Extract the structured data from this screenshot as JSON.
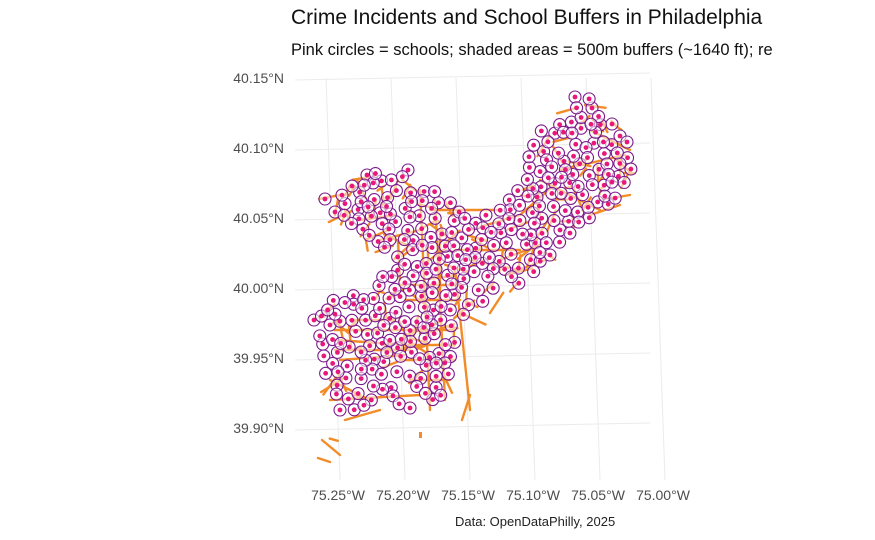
{
  "title": "Crime Incidents and School Buffers in Philadelphia",
  "subtitle": "Pink circles = schools; shaded areas = 500m buffers (~1640 ft); re",
  "caption": "Data: OpenDataPhilly, 2025",
  "colors": {
    "school_fill": "#e8177a",
    "buffer_stroke": "#7a1a8c",
    "crime": "#f28c28",
    "grid": "#ebebeb",
    "axis_text": "#4d4d4d"
  },
  "chart_data": {
    "type": "map",
    "title": "Crime Incidents and School Buffers in Philadelphia",
    "subtitle": "Pink circles = schools; shaded areas = 500m buffers (~1640 ft); re",
    "caption": "Data: OpenDataPhilly, 2025",
    "y_axis": {
      "ticks": [
        40.15,
        40.1,
        40.05,
        40.0,
        39.95,
        39.9
      ],
      "tick_labels": [
        "40.15°N",
        "40.10°N",
        "40.05°N",
        "40.00°N",
        "39.95°N",
        "39.90°N"
      ]
    },
    "x_axis": {
      "ticks": [
        -75.25,
        -75.2,
        -75.15,
        -75.1,
        -75.05,
        -75.0
      ],
      "tick_labels": [
        "75.25°W",
        "75.20°W",
        "75.15°W",
        "75.10°W",
        "75.05°W",
        "75.00°W"
      ]
    },
    "grid": true,
    "layers": [
      "schools (pink circles)",
      "500m buffers (purple rings)",
      "crime incidents (orange points)"
    ]
  }
}
